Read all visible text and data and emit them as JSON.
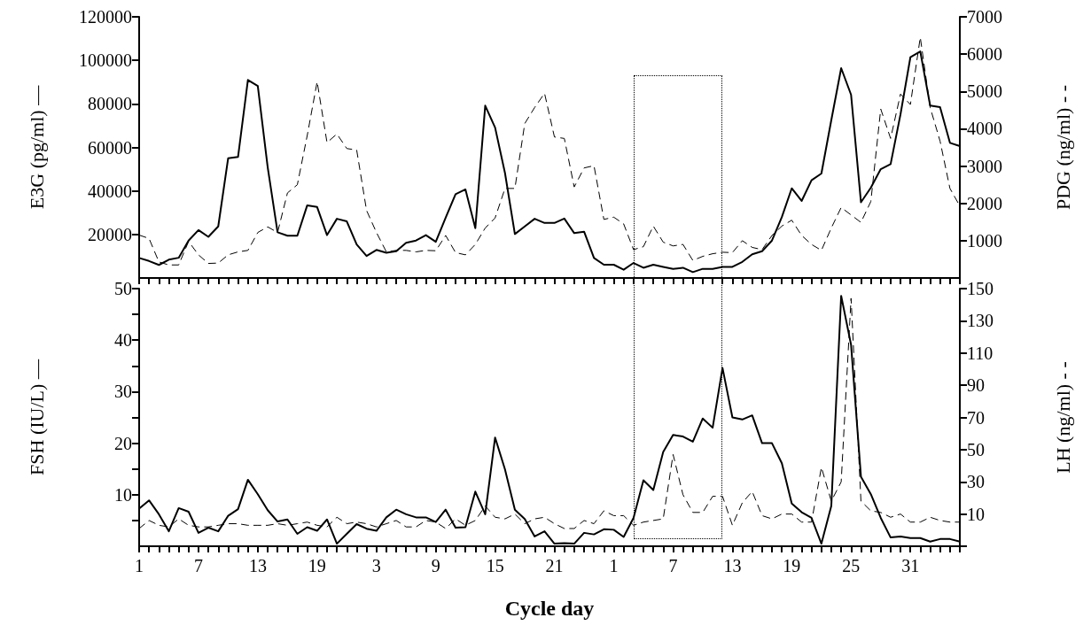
{
  "chart_data": [
    {
      "type": "line",
      "ylabel": "E3G (pg/ml) —",
      "y2label": "PDG (ng/ml) - -",
      "tick_labels": "y",
      "marker": "none",
      "categories": [
        "1",
        null,
        null,
        null,
        null,
        null,
        "7",
        null,
        null,
        null,
        null,
        null,
        "13",
        null,
        null,
        null,
        null,
        null,
        "19",
        null,
        null,
        null,
        null,
        null,
        "3",
        null,
        null,
        null,
        null,
        null,
        "9",
        null,
        null,
        null,
        null,
        null,
        "15",
        null,
        null,
        null,
        null,
        null,
        "21",
        null,
        null,
        null,
        null,
        null,
        "1",
        null,
        null,
        null,
        null,
        null,
        "7",
        null,
        null,
        null,
        null,
        null,
        "13",
        null,
        null,
        null,
        null,
        null,
        "19",
        null,
        null,
        null,
        null,
        null,
        "25",
        null,
        null,
        null,
        null,
        null,
        "31",
        null,
        null,
        null,
        null,
        null
      ],
      "ylim": [
        0,
        120000
      ],
      "yticks": [
        20000,
        40000,
        60000,
        80000,
        100000,
        120000
      ],
      "y2lim": [
        0,
        7000
      ],
      "y2ticks": [
        1000,
        2000,
        3000,
        4000,
        5000,
        6000,
        7000
      ],
      "series": [
        {
          "color": "#000000",
          "line_style": "solid",
          "values": [
            9200,
            7800,
            6000,
            8400,
            9300,
            17200,
            22000,
            18900,
            23700,
            55000,
            55600,
            91000,
            88200,
            50900,
            21000,
            19400,
            19400,
            33400,
            32600,
            19700,
            27200,
            26000,
            15400,
            10100,
            12900,
            11600,
            12300,
            16200,
            17200,
            19700,
            16600,
            27700,
            38500,
            40700,
            22900,
            79200,
            69100,
            48200,
            20200,
            23700,
            27200,
            25300,
            25300,
            27300,
            20600,
            21300,
            9200,
            6100,
            6100,
            3800,
            6900,
            4700,
            6100,
            5100,
            4200,
            4700,
            2700,
            4200,
            4200,
            5100,
            5100,
            7400,
            10900,
            12300,
            17200,
            28000,
            41200,
            35400,
            44900,
            48000,
            72500,
            96400,
            84200,
            34800,
            41500,
            50000,
            52300,
            75200,
            101400,
            104100,
            79200,
            78500,
            62100,
            60600
          ]
        },
        {
          "color": "#000000",
          "line_style": "dashed",
          "axis": "y2",
          "values": [
            1150,
            1060,
            430,
            350,
            350,
            980,
            620,
            390,
            400,
            620,
            700,
            740,
            1220,
            1370,
            1220,
            2280,
            2500,
            3820,
            5260,
            3630,
            3860,
            3470,
            3430,
            1810,
            1220,
            700,
            740,
            740,
            700,
            740,
            730,
            1140,
            680,
            620,
            900,
            1340,
            1610,
            2400,
            2400,
            4140,
            4570,
            4950,
            3780,
            3740,
            2440,
            2950,
            3010,
            1570,
            1630,
            1450,
            760,
            840,
            1390,
            960,
            860,
            900,
            470,
            580,
            650,
            690,
            680,
            1000,
            820,
            760,
            1140,
            1390,
            1550,
            1140,
            900,
            740,
            1340,
            1890,
            1690,
            1490,
            2050,
            4530,
            3740,
            4930,
            4650,
            6450,
            4570,
            3670,
            2400,
            1930
          ]
        }
      ]
    },
    {
      "type": "line",
      "xlabel": "Cycle day",
      "ylabel": "FSH (IU/L) —",
      "y2label": "LH (ng/ml) - -",
      "marker": "none",
      "categories": [
        "1",
        null,
        null,
        null,
        null,
        null,
        "7",
        null,
        null,
        null,
        null,
        null,
        "13",
        null,
        null,
        null,
        null,
        null,
        "19",
        null,
        null,
        null,
        null,
        null,
        "3",
        null,
        null,
        null,
        null,
        null,
        "9",
        null,
        null,
        null,
        null,
        null,
        "15",
        null,
        null,
        null,
        null,
        null,
        "21",
        null,
        null,
        null,
        null,
        null,
        "1",
        null,
        null,
        null,
        null,
        null,
        "7",
        null,
        null,
        null,
        null,
        null,
        "13",
        null,
        null,
        null,
        null,
        null,
        "19",
        null,
        null,
        null,
        null,
        null,
        "25",
        null,
        null,
        null,
        null,
        null,
        "31",
        null,
        null,
        null,
        null,
        null
      ],
      "ylim": [
        0,
        50
      ],
      "yticks": [
        {
          "value": 5,
          "label": null
        },
        10,
        {
          "value": 15,
          "label": null
        },
        20,
        {
          "value": 25,
          "label": null
        },
        30,
        {
          "value": 35,
          "label": null
        },
        40,
        {
          "value": 45,
          "label": null
        },
        50
      ],
      "y2lim": [
        -10,
        150
      ],
      "y2ticks": [
        {
          "value": -10,
          "label": null
        },
        10,
        30,
        50,
        70,
        90,
        110,
        130,
        150
      ],
      "series": [
        {
          "color": "#000000",
          "line_style": "solid",
          "values": [
            7.3,
            8.9,
            6.2,
            2.9,
            7.4,
            6.7,
            2.6,
            3.6,
            2.9,
            5.9,
            7.2,
            12.9,
            10.1,
            7,
            4.8,
            5.2,
            2.4,
            3.7,
            3,
            5.2,
            0.5,
            2.4,
            4.3,
            3.4,
            3,
            5.6,
            7.1,
            6.2,
            5.6,
            5.6,
            4.7,
            7.1,
            3.6,
            3.7,
            10.6,
            6.2,
            21.1,
            14.9,
            7.1,
            5.3,
            1.9,
            2.9,
            0.5,
            0.6,
            0.5,
            2.6,
            2.3,
            3.3,
            3.2,
            1.8,
            5.5,
            12.8,
            10.9,
            18.3,
            21.6,
            21.3,
            20.3,
            24.8,
            23,
            34.6,
            25,
            24.6,
            25.4,
            20,
            20,
            16.1,
            8.3,
            6.6,
            5.5,
            0.5,
            7.8,
            48.6,
            39.1,
            13.5,
            10.1,
            5.5,
            1.7,
            1.9,
            1.6,
            1.6,
            0.9,
            1.4,
            1.4,
            0.9
          ]
        },
        {
          "color": "#000000",
          "line_style": "dashed",
          "axis": "y2",
          "values": [
            1,
            6,
            3,
            2,
            7,
            3,
            2,
            2,
            3,
            4,
            4,
            3,
            3,
            3,
            4,
            3,
            4,
            5,
            3,
            2,
            8,
            4,
            5,
            4,
            2,
            4,
            6,
            2,
            2,
            6,
            5,
            1,
            7,
            3,
            6,
            15,
            8,
            7,
            10,
            4,
            7,
            8,
            4,
            1,
            1,
            6,
            4,
            12,
            9,
            9,
            3,
            5,
            6,
            7,
            47,
            22,
            11,
            11,
            21,
            21,
            3,
            17,
            24,
            9,
            7,
            10,
            10,
            5,
            5,
            39,
            18,
            30,
            144,
            18,
            12,
            11,
            8,
            10,
            5,
            5,
            8,
            6,
            5,
            5
          ]
        }
      ]
    }
  ]
}
